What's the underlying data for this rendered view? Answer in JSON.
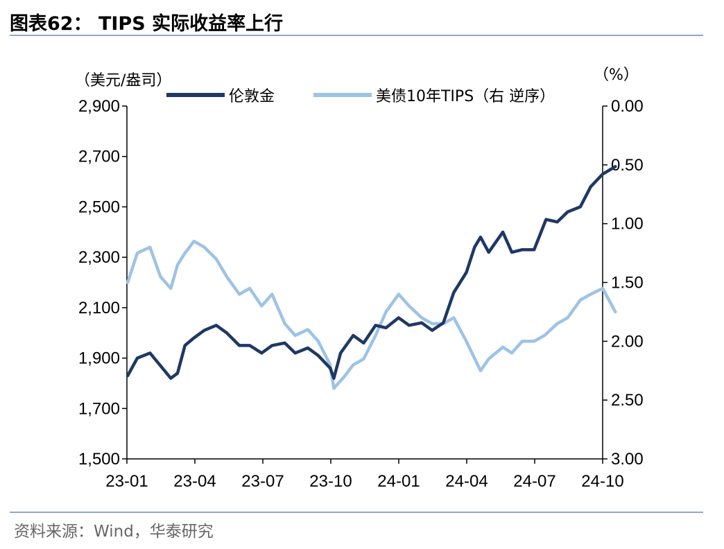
{
  "header": {
    "title": "图表62：  TIPS 实际收益率上行"
  },
  "footer": {
    "source": "资料来源：Wind，华泰研究"
  },
  "colors": {
    "gold": "#1f3864",
    "tips": "#9dc3e6",
    "rule": "#8ea7cc"
  },
  "chart_data": {
    "type": "line",
    "x_ticks": [
      "23-01",
      "23-04",
      "23-07",
      "23-10",
      "24-01",
      "24-04",
      "24-07",
      "24-10"
    ],
    "x_range": [
      "2023-01",
      "2024-10"
    ],
    "y_left": {
      "unit": "（美元/盎司）",
      "range": [
        1500,
        2900
      ],
      "ticks": [
        "1,500",
        "1,700",
        "1,900",
        "2,100",
        "2,300",
        "2,500",
        "2,700",
        "2,900"
      ]
    },
    "y_right": {
      "unit": "（%）",
      "range": [
        0.0,
        3.0
      ],
      "inverted": true,
      "ticks": [
        "0.00",
        "0.50",
        "1.00",
        "1.50",
        "2.00",
        "2.50",
        "3.00"
      ]
    },
    "legend": {
      "placement": "top",
      "gold_label": "伦敦金",
      "tips_label": "美债10年TIPS（右 逆序）"
    },
    "series": [
      {
        "name": "伦敦金",
        "axis": "left",
        "x": [
          "2023-01-02",
          "2023-01-15",
          "2023-02-01",
          "2023-02-15",
          "2023-03-01",
          "2023-03-10",
          "2023-03-20",
          "2023-04-01",
          "2023-04-15",
          "2023-05-01",
          "2023-05-15",
          "2023-06-01",
          "2023-06-15",
          "2023-07-01",
          "2023-07-15",
          "2023-08-01",
          "2023-08-15",
          "2023-09-01",
          "2023-09-15",
          "2023-10-01",
          "2023-10-06",
          "2023-10-15",
          "2023-11-01",
          "2023-11-15",
          "2023-12-01",
          "2023-12-15",
          "2024-01-01",
          "2024-01-15",
          "2024-02-01",
          "2024-02-15",
          "2024-03-01",
          "2024-03-15",
          "2024-04-01",
          "2024-04-12",
          "2024-04-20",
          "2024-05-01",
          "2024-05-20",
          "2024-06-01",
          "2024-06-15",
          "2024-07-01",
          "2024-07-17",
          "2024-08-01",
          "2024-08-15",
          "2024-09-01",
          "2024-09-15",
          "2024-10-01",
          "2024-10-18"
        ],
        "values": [
          1830,
          1900,
          1920,
          1870,
          1820,
          1840,
          1950,
          1980,
          2010,
          2030,
          2000,
          1950,
          1950,
          1920,
          1950,
          1960,
          1920,
          1940,
          1910,
          1860,
          1820,
          1920,
          1990,
          1960,
          2030,
          2020,
          2060,
          2030,
          2040,
          2010,
          2040,
          2160,
          2240,
          2340,
          2380,
          2320,
          2400,
          2320,
          2330,
          2330,
          2450,
          2440,
          2480,
          2500,
          2580,
          2630,
          2660
        ]
      },
      {
        "name": "美债10年TIPS（右 逆序）",
        "axis": "right",
        "x": [
          "2023-01-02",
          "2023-01-15",
          "2023-02-01",
          "2023-02-15",
          "2023-03-01",
          "2023-03-10",
          "2023-03-20",
          "2023-04-01",
          "2023-04-15",
          "2023-05-01",
          "2023-05-15",
          "2023-06-01",
          "2023-06-15",
          "2023-07-01",
          "2023-07-15",
          "2023-08-01",
          "2023-08-15",
          "2023-09-01",
          "2023-09-15",
          "2023-10-01",
          "2023-10-06",
          "2023-10-20",
          "2023-11-01",
          "2023-11-15",
          "2023-12-01",
          "2023-12-15",
          "2024-01-01",
          "2024-01-15",
          "2024-02-01",
          "2024-02-15",
          "2024-03-01",
          "2024-03-15",
          "2024-04-01",
          "2024-04-20",
          "2024-05-01",
          "2024-05-20",
          "2024-06-01",
          "2024-06-15",
          "2024-07-01",
          "2024-07-15",
          "2024-08-01",
          "2024-08-15",
          "2024-09-01",
          "2024-09-15",
          "2024-10-01",
          "2024-10-18"
        ],
        "values": [
          1.5,
          1.25,
          1.2,
          1.45,
          1.55,
          1.35,
          1.25,
          1.15,
          1.2,
          1.3,
          1.45,
          1.6,
          1.55,
          1.7,
          1.6,
          1.85,
          1.95,
          1.9,
          2.0,
          2.2,
          2.4,
          2.3,
          2.2,
          2.15,
          1.95,
          1.75,
          1.6,
          1.7,
          1.8,
          1.85,
          1.85,
          1.8,
          2.0,
          2.25,
          2.15,
          2.05,
          2.1,
          2.0,
          2.0,
          1.95,
          1.85,
          1.8,
          1.65,
          1.6,
          1.55,
          1.75
        ]
      }
    ]
  }
}
